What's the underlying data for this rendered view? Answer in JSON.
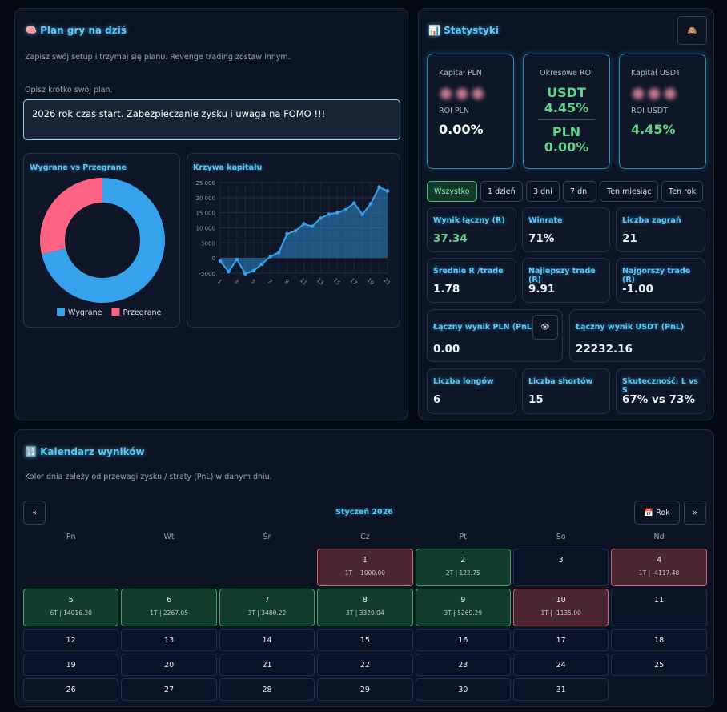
{
  "plan": {
    "title": "Plan gry na dziś",
    "subtitle": "Zapisz swój setup i trzymaj się planu. Revenge trading zostaw innym.",
    "prompt": "Opisz krótko swój plan.",
    "text": "2026 rok czas start. Zabezpieczanie zysku i uwaga na FOMO !!!"
  },
  "chart_data": [
    {
      "type": "doughnut",
      "title": "Wygrane vs Przegrane",
      "categories": [
        "Wygrane",
        "Przegrane"
      ],
      "values": [
        15,
        6
      ],
      "colors": [
        "#36a2eb",
        "#ff6384"
      ],
      "legend": "bottom"
    },
    {
      "type": "line",
      "title": "Krzywa kapitału",
      "categories": [
        1,
        null,
        3,
        null,
        5,
        null,
        7,
        null,
        9,
        null,
        11,
        null,
        13,
        null,
        15,
        null,
        17,
        null,
        19,
        null,
        21
      ],
      "values": [
        -1000,
        -4500,
        -500,
        -5200,
        -4200,
        -2000,
        500,
        1800,
        8000,
        9000,
        11300,
        10500,
        13200,
        14500,
        15000,
        16000,
        18200,
        14500,
        18000,
        23500,
        22232.16
      ],
      "color": "#36a2eb",
      "fill": true,
      "grid": true,
      "ylim": [
        -5000,
        25000
      ],
      "yticks": [
        -5000,
        0,
        5000,
        {
          "value": 10000,
          "label": "10 000"
        },
        {
          "value": 15000,
          "label": "15 000"
        },
        {
          "value": 20000,
          "label": "20 000"
        },
        {
          "value": 25000,
          "label": "25 000"
        }
      ]
    }
  ],
  "stats": {
    "title": "Statystyki",
    "pln": {
      "label": "Kapitał PLN",
      "roi_label": "ROI PLN",
      "roi": "0.00%"
    },
    "period": {
      "label": "Okresowe ROI",
      "usdt_label": "USDT",
      "usdt": "4.45%",
      "pln_label": "PLN",
      "pln": "0.00%"
    },
    "usdt": {
      "label": "Kapitał USDT",
      "roi_label": "ROI USDT",
      "roi": "4.45%"
    },
    "filters": [
      {
        "label": "Wszystko",
        "active": true
      },
      {
        "label": "1 dzień"
      },
      {
        "label": "3 dni"
      },
      {
        "label": "7 dni"
      },
      {
        "label": "Ten miesiąc"
      },
      {
        "label": "Ten rok"
      }
    ],
    "tiles": [
      {
        "label": "Wynik łączny (R)",
        "value": "37.34",
        "color": "#5fd38a"
      },
      {
        "label": "Winrate",
        "value": "71%"
      },
      {
        "label": "Liczba zagrań",
        "value": "21"
      },
      {
        "label": "Średnie R /trade",
        "value": "1.78"
      },
      {
        "label": "Najlepszy trade (R)",
        "value": "9.91"
      },
      {
        "label": "Najgorszy trade (R)",
        "value": "-1.00"
      },
      {
        "label": "Łączny wynik PLN (PnL)",
        "value": "0.00"
      },
      {
        "label": "Łączny wynik USDT (PnL)",
        "value": "22232.16"
      },
      {
        "label": "Liczba longów",
        "value": "6"
      },
      {
        "label": "Liczba shortów",
        "value": "15"
      },
      {
        "label": "Skuteczność: L vs S",
        "value": "67% vs 73%"
      }
    ]
  },
  "calendar": {
    "title": "Kalendarz wyników",
    "subtitle": "Kolor dnia zależy od przewagi zysku / straty (PnL) w danym dniu.",
    "prev": "«",
    "next": "»",
    "month": "Styczeń 2026",
    "year_button": "Rok",
    "weekdays": [
      "Pn",
      "Wt",
      "Śr",
      "Cz",
      "Pt",
      "So",
      "Nd"
    ],
    "days": [
      null,
      null,
      null,
      {
        "day": 1,
        "info": "1T | -1000.00",
        "color": "loss"
      },
      {
        "day": 2,
        "info": "2T | 122.75",
        "color": "win"
      },
      {
        "day": 3
      },
      {
        "day": 4,
        "info": "1T | -4117.48",
        "color": "loss"
      },
      {
        "day": 5,
        "info": "6T | 14016.30",
        "color": "win"
      },
      {
        "day": 6,
        "info": "1T | 2267.05",
        "color": "win"
      },
      {
        "day": 7,
        "info": "3T | 3480.22",
        "color": "win"
      },
      {
        "day": 8,
        "info": "3T | 3329.04",
        "color": "win"
      },
      {
        "day": 9,
        "info": "3T | 5269.29",
        "color": "win"
      },
      {
        "day": 10,
        "info": "1T | -1135.00",
        "color": "loss"
      },
      {
        "day": 11
      },
      {
        "day": 12
      },
      {
        "day": 13
      },
      {
        "day": 14
      },
      {
        "day": 15
      },
      {
        "day": 16
      },
      {
        "day": 17
      },
      {
        "day": 18
      },
      {
        "day": 19
      },
      {
        "day": 20
      },
      {
        "day": 21
      },
      {
        "day": 22
      },
      {
        "day": 23
      },
      {
        "day": 24
      },
      {
        "day": 25
      },
      {
        "day": 26
      },
      {
        "day": 27
      },
      {
        "day": 28
      },
      {
        "day": 29
      },
      {
        "day": 30
      },
      {
        "day": 31
      }
    ]
  }
}
